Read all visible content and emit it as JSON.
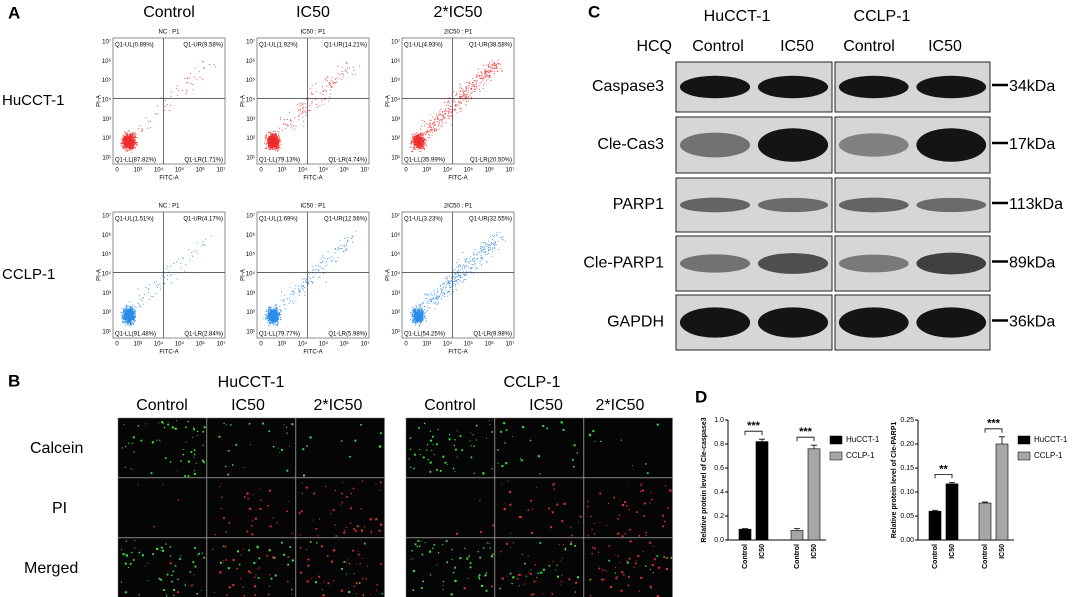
{
  "panel_a": {
    "label": "A",
    "columns": [
      "Control",
      "IC50",
      "2*IC50"
    ],
    "rows": [
      "HuCCT-1",
      "CCLP-1"
    ],
    "x_label": "FITC-A",
    "y_label": "PI-A",
    "x_ticks": [
      "0",
      "10³",
      "10⁴",
      "10⁵",
      "10⁶",
      "10⁷"
    ],
    "y_ticks": [
      "10¹",
      "10²",
      "10³",
      "10⁴",
      "10⁵",
      "10⁶",
      "10⁷"
    ],
    "plots": [
      [
        {
          "title": "NC : P1",
          "ul": "Q1-UL(0.89%)",
          "ur": "Q1-UR(9.58%)",
          "ll": "Q1-LL(87.82%)",
          "lr": "Q1-LR(1.71%)"
        },
        {
          "title": "IC50 : P1",
          "ul": "Q1-UL(1.92%)",
          "ur": "Q1-UR(14.21%)",
          "ll": "Q1-LL(79.13%)",
          "lr": "Q1-LR(4.74%)"
        },
        {
          "title": "2IC50 : P1",
          "ul": "Q1-UL(4.93%)",
          "ur": "Q1-UR(38.58%)",
          "ll": "Q1-LL(35.99%)",
          "lr": "Q1-LR(20.50%)"
        }
      ],
      [
        {
          "title": "NC : P1",
          "ul": "Q1-UL(1.51%)",
          "ur": "Q1-UR(4.17%)",
          "ll": "Q1-LL(91.48%)",
          "lr": "Q1-LR(2.84%)"
        },
        {
          "title": "IC50 : P1",
          "ul": "Q1-UL(1.69%)",
          "ur": "Q1-UR(12.56%)",
          "ll": "Q1-LL(79.77%)",
          "lr": "Q1-LR(5.98%)"
        },
        {
          "title": "2IC50 : P1",
          "ul": "Q1-UL(3.23%)",
          "ur": "Q1-UR(32.55%)",
          "ll": "Q1-LL(54.25%)",
          "lr": "Q1-LR(9.98%)"
        }
      ]
    ]
  },
  "panel_b": {
    "label": "B",
    "groups": [
      {
        "name": "HuCCT-1",
        "columns": [
          "Control",
          "IC50",
          "2*IC50"
        ]
      },
      {
        "name": "CCLP-1",
        "columns": [
          "Control",
          "IC50",
          "2*IC50"
        ]
      }
    ],
    "rows": [
      "Calcein",
      "PI",
      "Merged"
    ]
  },
  "panel_c": {
    "label": "C",
    "cell_lines": [
      "HuCCT-1",
      "CCLP-1"
    ],
    "treatment_label": "HCQ",
    "lanes": [
      "Control",
      "IC50",
      "Control",
      "IC50"
    ],
    "proteins": [
      {
        "name": "Caspase3",
        "size": "34kDa"
      },
      {
        "name": "Cle-Cas3",
        "size": "17kDa"
      },
      {
        "name": "PARP1",
        "size": "113kDa"
      },
      {
        "name": "Cle-PARP1",
        "size": "89kDa"
      },
      {
        "name": "GAPDH",
        "size": "36kDa"
      }
    ]
  },
  "panel_d": {
    "label": "D"
  },
  "chart_data": [
    {
      "type": "bar",
      "y_label": "Relative protein level of Cle-caspase3",
      "categories": [
        "Control",
        "IC50",
        "Control",
        "IC50"
      ],
      "series": [
        {
          "name": "HuCCT-1",
          "color": "#000000",
          "values": [
            0.09,
            0.82,
            null,
            null
          ],
          "errors": [
            0.005,
            0.02,
            null,
            null
          ]
        },
        {
          "name": "CCLP-1",
          "color": "#a6a6a6",
          "values": [
            null,
            null,
            0.08,
            0.76
          ],
          "errors": [
            null,
            null,
            0.015,
            0.03
          ]
        }
      ],
      "ylim": [
        0,
        1
      ],
      "yticks": [
        {
          "value": 0,
          "label": "0.0"
        },
        0.2,
        0.4,
        0.6,
        0.8,
        {
          "value": 1,
          "label": "1.0"
        }
      ],
      "significance": [
        "***",
        "***"
      ]
    },
    {
      "type": "bar",
      "y_label": "Relative protein level of Cle-PARP1",
      "categories": [
        "Control",
        "IC50",
        "Control",
        "IC50"
      ],
      "series": [
        {
          "name": "HuCCT-1",
          "color": "#000000",
          "values": [
            0.06,
            0.117,
            null,
            null
          ],
          "errors": [
            0.002,
            0.003,
            null,
            null
          ]
        },
        {
          "name": "CCLP-1",
          "color": "#a6a6a6",
          "values": [
            null,
            null,
            0.077,
            0.2
          ],
          "errors": [
            null,
            null,
            0.002,
            0.015
          ]
        }
      ],
      "ylim": [
        0,
        0.25
      ],
      "yticks": [
        {
          "value": 0,
          "label": "0.00"
        },
        0.05,
        {
          "value": 0.1,
          "label": "0.10"
        },
        0.15,
        {
          "value": 0.2,
          "label": "0.20"
        },
        0.25
      ],
      "significance": [
        "**",
        "***"
      ]
    }
  ]
}
